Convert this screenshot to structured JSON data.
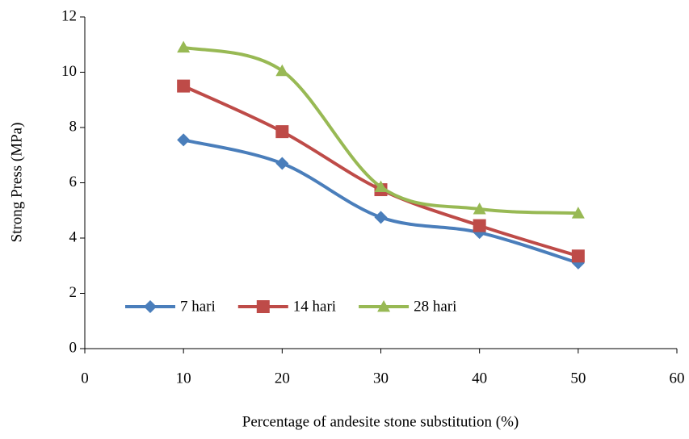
{
  "chart_data": {
    "type": "line",
    "x_label": "Percentage of andesite stone substitution (%)",
    "y_label": "Strong Press  (MPa)",
    "x": [
      10,
      20,
      30,
      40,
      50
    ],
    "series": [
      {
        "name": "7 hari",
        "color": "#4a7ebb",
        "marker": "diamond",
        "values": [
          7.55,
          6.7,
          4.75,
          4.2,
          3.1
        ]
      },
      {
        "name": "14 hari",
        "color": "#be4b48",
        "marker": "square",
        "values": [
          9.5,
          7.85,
          5.75,
          4.45,
          3.35
        ]
      },
      {
        "name": "28 hari",
        "color": "#98b954",
        "marker": "triangle",
        "values": [
          10.9,
          10.05,
          5.85,
          5.05,
          4.9
        ]
      }
    ],
    "xlim": [
      0,
      60
    ],
    "xticks": [
      0,
      10,
      20,
      30,
      40,
      50,
      60
    ],
    "ylim": [
      0,
      12
    ],
    "yticks": [
      0,
      2,
      4,
      6,
      8,
      10,
      12
    ],
    "smooth": true,
    "legend": "lower left"
  }
}
